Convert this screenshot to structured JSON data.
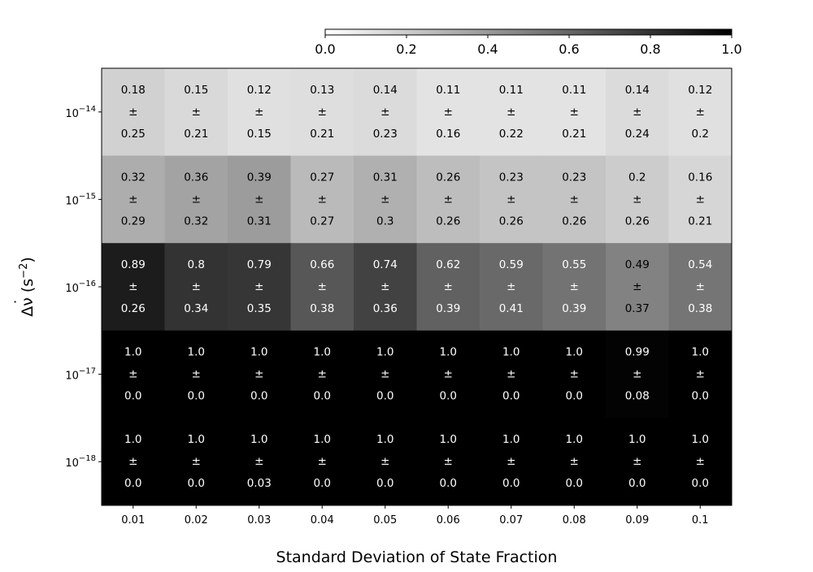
{
  "chart_data": {
    "type": "heatmap",
    "colormap": "grayscale",
    "colorbar": {
      "range": [
        0.0,
        1.0
      ],
      "ticks": [
        "0.0",
        "0.2",
        "0.4",
        "0.6",
        "0.8",
        "1.0"
      ],
      "placement": "top"
    },
    "xlabel": "Standard Deviation of State Fraction",
    "ylabel": {
      "prefix": "Δ",
      "symbol": "ν",
      "dot": "˙",
      "unit_open": " (s",
      "unit_exp": "−2",
      "unit_close": ")"
    },
    "x_categories": [
      "0.01",
      "0.02",
      "0.03",
      "0.04",
      "0.05",
      "0.06",
      "0.07",
      "0.08",
      "0.09",
      "0.1"
    ],
    "y_categories": [
      {
        "base": "10",
        "exp": "−14"
      },
      {
        "base": "10",
        "exp": "−15"
      },
      {
        "base": "10",
        "exp": "−16"
      },
      {
        "base": "10",
        "exp": "−17"
      },
      {
        "base": "10",
        "exp": "−18"
      }
    ],
    "pm_symbol": "±",
    "values": [
      [
        "0.18",
        "0.15",
        "0.12",
        "0.13",
        "0.14",
        "0.11",
        "0.11",
        "0.11",
        "0.14",
        "0.12"
      ],
      [
        "0.32",
        "0.36",
        "0.39",
        "0.27",
        "0.31",
        "0.26",
        "0.23",
        "0.23",
        "0.2",
        "0.16"
      ],
      [
        "0.89",
        "0.8",
        "0.79",
        "0.66",
        "0.74",
        "0.62",
        "0.59",
        "0.55",
        "0.49",
        "0.54"
      ],
      [
        "1.0",
        "1.0",
        "1.0",
        "1.0",
        "1.0",
        "1.0",
        "1.0",
        "1.0",
        "0.99",
        "1.0"
      ],
      [
        "1.0",
        "1.0",
        "1.0",
        "1.0",
        "1.0",
        "1.0",
        "1.0",
        "1.0",
        "1.0",
        "1.0"
      ]
    ],
    "errors": [
      [
        "0.25",
        "0.21",
        "0.15",
        "0.21",
        "0.23",
        "0.16",
        "0.22",
        "0.21",
        "0.24",
        "0.2"
      ],
      [
        "0.29",
        "0.32",
        "0.31",
        "0.27",
        "0.3",
        "0.26",
        "0.26",
        "0.26",
        "0.26",
        "0.21"
      ],
      [
        "0.26",
        "0.34",
        "0.35",
        "0.38",
        "0.36",
        "0.39",
        "0.41",
        "0.39",
        "0.37",
        "0.38"
      ],
      [
        "0.0",
        "0.0",
        "0.0",
        "0.0",
        "0.0",
        "0.0",
        "0.0",
        "0.0",
        "0.08",
        "0.0"
      ],
      [
        "0.0",
        "0.0",
        "0.03",
        "0.0",
        "0.0",
        "0.0",
        "0.0",
        "0.0",
        "0.0",
        "0.0"
      ]
    ]
  }
}
